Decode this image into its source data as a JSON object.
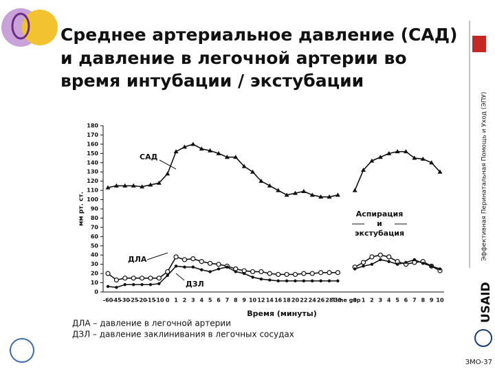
{
  "slide": {
    "title_lines": [
      "Среднее артериальное давление (САД)",
      "и давление в легочной артерии во",
      "время интубации / экстубации"
    ],
    "side_text": "Эффективная Перинатальная Помощь и Уход (ЭПУ)",
    "footnotes": [
      "ДЛА – давление в легочной артерии",
      "ДЗЛ – давление заклинивания  в легочных сосудах"
    ],
    "logo_text": "USAID",
    "page_number": "ЗМО-37"
  },
  "chart_data": {
    "type": "line",
    "y_label": "мм рт. ст.",
    "x_label": "Время (минуты)",
    "categories": [
      "-60",
      "-45",
      "-30",
      "-25",
      "-20",
      "-15",
      "-10",
      "0",
      "1",
      "2",
      "3",
      "4",
      "5",
      "6",
      "7",
      "8",
      "9",
      "10",
      "12",
      "14",
      "16",
      "18",
      "20",
      "22",
      "24",
      "26",
      "28",
      "30",
      "Time gap",
      "0",
      "1",
      "2",
      "3",
      "4",
      "5",
      "6",
      "7",
      "8",
      "9",
      "10"
    ],
    "series": [
      {
        "name": "САД",
        "color": "#111111",
        "marker": "triangle",
        "values": [
          113,
          115,
          115,
          115,
          114,
          116,
          118,
          128,
          152,
          157,
          160,
          155,
          153,
          150,
          146,
          146,
          136,
          130,
          120,
          115,
          110,
          105,
          107,
          109,
          105,
          103,
          103,
          105,
          null,
          110,
          132,
          142,
          146,
          150,
          152,
          152,
          145,
          144,
          140,
          130
        ]
      },
      {
        "name": "ДЛА",
        "color": "#111111",
        "marker": "open-circle",
        "values": [
          20,
          13,
          15,
          15,
          15,
          15,
          15,
          22,
          38,
          35,
          36,
          33,
          31,
          30,
          28,
          25,
          23,
          22,
          22,
          20,
          19,
          19,
          19,
          20,
          20,
          21,
          21,
          21,
          null,
          27,
          32,
          38,
          40,
          38,
          33,
          30,
          32,
          33,
          28,
          23
        ]
      },
      {
        "name": "ДЗЛ",
        "color": "#111111",
        "marker": "dot",
        "values": [
          6,
          5,
          8,
          8,
          8,
          8,
          9,
          18,
          28,
          27,
          27,
          24,
          22,
          25,
          27,
          22,
          20,
          16,
          14,
          13,
          12,
          12,
          12,
          12,
          12,
          12,
          12,
          12,
          null,
          25,
          28,
          30,
          35,
          33,
          30,
          32,
          35,
          31,
          28,
          25
        ]
      }
    ],
    "annotations": [
      "САД",
      "ДЛА",
      "ДЗЛ",
      "Аспирация",
      "и",
      "экстубация"
    ],
    "ylim": [
      0,
      180
    ],
    "yticks": [
      0,
      10,
      20,
      30,
      40,
      50,
      60,
      70,
      80,
      90,
      100,
      110,
      120,
      130,
      140,
      150,
      160,
      170,
      180
    ],
    "grid": false
  }
}
